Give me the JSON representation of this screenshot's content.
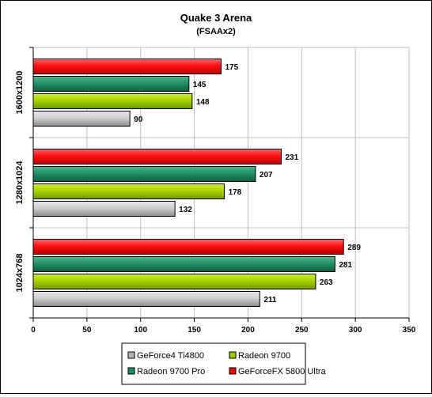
{
  "chart_data": {
    "type": "bar",
    "orientation": "horizontal",
    "title": "Quake 3 Arena",
    "subtitle": "(FSAAx2)",
    "xlabel": "",
    "ylabel": "",
    "xlim": [
      0,
      350
    ],
    "x_ticks": [
      0,
      50,
      100,
      150,
      200,
      250,
      300,
      350
    ],
    "grid": true,
    "legend_position": "bottom",
    "categories": [
      "1600x1200",
      "1280x1024",
      "1024x768"
    ],
    "series": [
      {
        "name": "GeForce4 Ti4800",
        "color": "#b4b4b4",
        "values": [
          90,
          132,
          211
        ]
      },
      {
        "name": "Radeon 9700",
        "color": "#99cc00",
        "values": [
          148,
          178,
          263
        ]
      },
      {
        "name": "Radeon 9700 Pro",
        "color": "#1e8c5a",
        "values": [
          145,
          207,
          281
        ]
      },
      {
        "name": "GeForceFX 5800 Ultra",
        "color": "#ff0000",
        "values": [
          175,
          231,
          289
        ]
      }
    ],
    "bar_order_top_to_bottom": [
      "GeForceFX 5800 Ultra",
      "Radeon 9700 Pro",
      "Radeon 9700",
      "GeForce4 Ti4800"
    ]
  }
}
